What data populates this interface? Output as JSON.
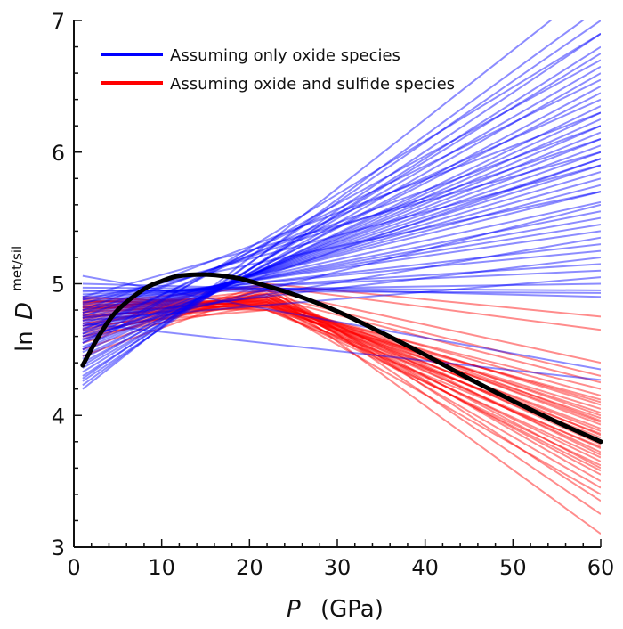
{
  "chart_data": {
    "type": "line",
    "title": "",
    "xlabel": "P",
    "xlabel_unit": "(GPa)",
    "ylabel_prefix": "ln",
    "ylabel_var": "D",
    "ylabel_sup": "met/sil",
    "xlim": [
      0,
      60
    ],
    "ylim": [
      3,
      7
    ],
    "xticks": [
      0,
      10,
      20,
      30,
      40,
      50,
      60
    ],
    "yticks": [
      3,
      4,
      5,
      6,
      7
    ],
    "x_minor_step": 2,
    "y_minor_step": 0.2,
    "grid": false,
    "legend_position": "top-left",
    "legend": [
      {
        "label": "Assuming only oxide species",
        "color": "#0000ff"
      },
      {
        "label": "Assuming oxide and sulfide species",
        "color": "#ff0000"
      }
    ],
    "colors": {
      "oxide": "#0000ff",
      "sulfide": "#ff0000",
      "fit": "#000000"
    },
    "oxide_lines_x": [
      1,
      60
    ],
    "oxide_lines": [
      [
        4.2,
        7.3
      ],
      [
        4.23,
        7.1
      ],
      [
        4.26,
        6.9
      ],
      [
        4.28,
        7.0
      ],
      [
        4.3,
        6.8
      ],
      [
        4.33,
        6.75
      ],
      [
        4.36,
        6.6
      ],
      [
        4.38,
        6.65
      ],
      [
        4.4,
        6.5
      ],
      [
        4.43,
        6.45
      ],
      [
        4.45,
        6.35
      ],
      [
        4.48,
        6.3
      ],
      [
        4.5,
        6.25
      ],
      [
        4.52,
        6.2
      ],
      [
        4.55,
        6.15
      ],
      [
        4.57,
        6.1
      ],
      [
        4.6,
        6.05
      ],
      [
        4.62,
        6.0
      ],
      [
        4.64,
        5.95
      ],
      [
        4.66,
        5.9
      ],
      [
        4.68,
        5.85
      ],
      [
        4.7,
        5.8
      ],
      [
        4.72,
        5.75
      ],
      [
        4.74,
        5.7
      ],
      [
        4.76,
        5.62
      ],
      [
        4.78,
        5.55
      ],
      [
        4.8,
        5.5
      ],
      [
        4.82,
        5.45
      ],
      [
        4.84,
        5.4
      ],
      [
        4.86,
        5.3
      ],
      [
        4.88,
        5.25
      ],
      [
        4.9,
        5.15
      ],
      [
        4.92,
        5.1
      ],
      [
        4.94,
        5.0
      ],
      [
        4.95,
        4.93
      ],
      [
        4.97,
        4.95
      ],
      [
        5.0,
        4.9
      ],
      [
        5.06,
        4.35
      ],
      [
        4.7,
        4.27
      ],
      [
        4.65,
        6.4
      ],
      [
        4.55,
        6.7
      ],
      [
        4.75,
        6.2
      ],
      [
        4.85,
        5.9
      ],
      [
        4.6,
        5.6
      ],
      [
        4.9,
        6.0
      ],
      [
        4.8,
        6.3
      ],
      [
        4.68,
        5.35
      ],
      [
        4.72,
        5.05
      ],
      [
        4.5,
        6.9
      ],
      [
        4.62,
        6.55
      ],
      [
        4.78,
        6.1
      ],
      [
        4.88,
        5.7
      ],
      [
        4.58,
        5.95
      ],
      [
        4.74,
        5.2
      ]
    ],
    "sulfide_lines_x": [
      1,
      22,
      60
    ],
    "sulfide_lines": [
      [
        4.45,
        4.95,
        3.1
      ],
      [
        4.5,
        4.98,
        3.25
      ],
      [
        4.55,
        5.0,
        3.35
      ],
      [
        4.58,
        4.92,
        3.45
      ],
      [
        4.6,
        4.96,
        3.5
      ],
      [
        4.62,
        4.9,
        3.55
      ],
      [
        4.65,
        4.93,
        3.6
      ],
      [
        4.66,
        4.88,
        3.65
      ],
      [
        4.68,
        4.95,
        3.7
      ],
      [
        4.7,
        4.9,
        3.72
      ],
      [
        4.72,
        4.86,
        3.75
      ],
      [
        4.73,
        4.92,
        3.78
      ],
      [
        4.74,
        4.88,
        3.8
      ],
      [
        4.75,
        4.85,
        3.83
      ],
      [
        4.76,
        4.9,
        3.85
      ],
      [
        4.78,
        4.87,
        3.88
      ],
      [
        4.79,
        4.84,
        3.9
      ],
      [
        4.8,
        4.89,
        3.93
      ],
      [
        4.81,
        4.86,
        3.95
      ],
      [
        4.82,
        4.83,
        3.98
      ],
      [
        4.83,
        4.88,
        4.0
      ],
      [
        4.84,
        4.85,
        4.02
      ],
      [
        4.85,
        4.82,
        4.05
      ],
      [
        4.86,
        4.87,
        4.08
      ],
      [
        4.87,
        4.84,
        4.1
      ],
      [
        4.88,
        4.8,
        4.12
      ],
      [
        4.89,
        4.86,
        4.15
      ],
      [
        4.9,
        4.83,
        4.2
      ],
      [
        4.86,
        4.9,
        4.25
      ],
      [
        4.82,
        4.92,
        4.3
      ],
      [
        4.8,
        4.95,
        4.4
      ],
      [
        4.78,
        5.0,
        4.75
      ],
      [
        4.85,
        4.98,
        4.65
      ],
      [
        4.7,
        4.84,
        3.68
      ],
      [
        4.64,
        4.86,
        3.58
      ],
      [
        4.76,
        4.82,
        3.62
      ],
      [
        4.68,
        4.8,
        3.76
      ],
      [
        4.74,
        4.9,
        3.96
      ],
      [
        4.6,
        4.84,
        3.4
      ],
      [
        4.82,
        4.8,
        3.86
      ]
    ],
    "fit_curve": {
      "x": [
        1,
        3,
        5,
        8,
        10,
        12,
        15,
        18,
        20,
        25,
        30,
        35,
        40,
        45,
        50,
        55,
        60
      ],
      "y": [
        4.38,
        4.62,
        4.8,
        4.96,
        5.02,
        5.06,
        5.07,
        5.05,
        5.02,
        4.92,
        4.79,
        4.63,
        4.46,
        4.28,
        4.11,
        3.95,
        3.8
      ]
    }
  }
}
